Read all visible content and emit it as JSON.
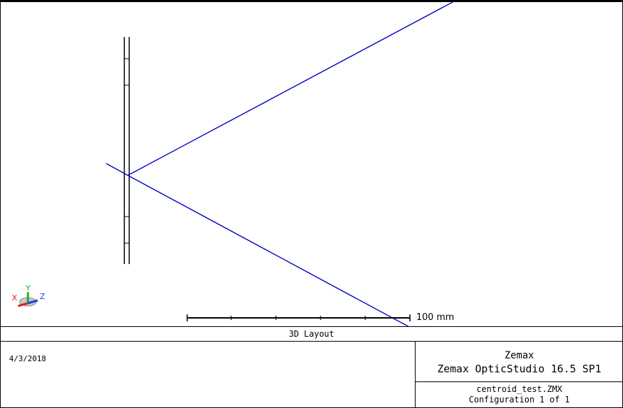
{
  "scale_bar": {
    "label": "100 mm"
  },
  "orientation_axes": {
    "x_label": "X",
    "y_label": "Y",
    "z_label": "Z"
  },
  "footer": {
    "plot_title": "3D Layout",
    "date": "4/3/2018",
    "company": "Zemax",
    "product": "Zemax OpticStudio 16.5 SP1",
    "file_name": "centroid_test.ZMX",
    "configuration": "Configuration 1 of 1"
  },
  "colors": {
    "ray": "#0000c8",
    "axis_x": "#e02020",
    "axis_y": "#20b020",
    "axis_z": "#2040e0",
    "lens": "#000000"
  }
}
